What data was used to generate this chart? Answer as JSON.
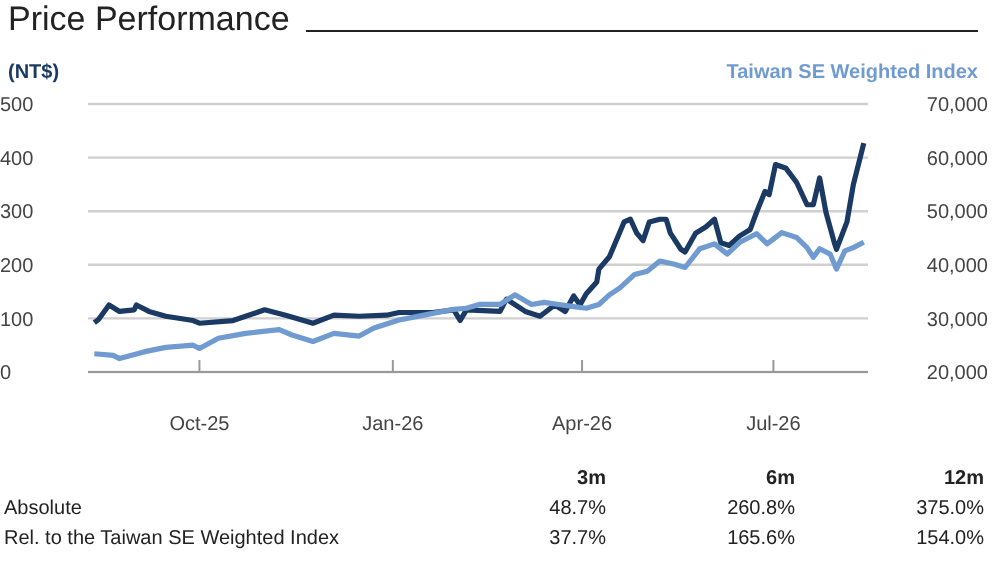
{
  "chart_data": {
    "type": "line",
    "title": "Price Performance",
    "ylabel": "(NT$)",
    "xlim": [
      "2025-08-09",
      "2026-08-15"
    ],
    "xticks": [
      {
        "value": "2025-10-01",
        "label": "Oct-25"
      },
      {
        "value": "2026-01-01",
        "label": "Jan-26"
      },
      {
        "value": "2026-04-01",
        "label": "Apr-26"
      },
      {
        "value": "2026-07-01",
        "label": "Jul-26"
      }
    ],
    "ylim": [
      0,
      500
    ],
    "yticks": [
      0,
      100,
      200,
      300,
      400,
      500
    ],
    "y2lim": [
      20000,
      70000
    ],
    "y2ticks": [
      {
        "value": 20000,
        "label": "20,000"
      },
      {
        "value": 30000,
        "label": "30,000"
      },
      {
        "value": 40000,
        "label": "40,000"
      },
      {
        "value": 50000,
        "label": "50,000"
      },
      {
        "value": 60000,
        "label": "60,000"
      },
      {
        "value": 70000,
        "label": "70,000"
      }
    ],
    "grid": "y",
    "legend": "top right",
    "marker": "none",
    "line_style": "solid",
    "series": [
      {
        "color": "#1b3a63",
        "x": [
          "2025-08-12",
          "2025-08-14",
          "2025-08-19",
          "2025-08-24",
          "2025-08-31",
          "2025-09-01",
          "2025-09-07",
          "2025-09-15",
          "2025-09-28",
          "2025-10-01",
          "2025-10-17",
          "2025-11-01",
          "2025-11-11",
          "2025-11-24",
          "2025-12-04",
          "2025-12-16",
          "2025-12-29",
          "2026-01-04",
          "2026-01-20",
          "2026-01-30",
          "2026-02-02",
          "2026-02-05",
          "2026-02-21",
          "2026-02-24",
          "2026-03-05",
          "2026-03-12",
          "2026-03-19",
          "2026-03-24",
          "2026-03-28",
          "2026-03-31",
          "2026-04-03",
          "2026-04-08",
          "2026-04-09",
          "2026-04-14",
          "2026-04-21",
          "2026-04-24",
          "2026-04-27",
          "2026-04-30",
          "2026-05-03",
          "2026-05-08",
          "2026-05-11",
          "2026-05-13",
          "2026-05-18",
          "2026-05-20",
          "2026-05-25",
          "2026-05-30",
          "2026-06-03",
          "2026-06-06",
          "2026-06-10",
          "2026-06-15",
          "2026-06-20",
          "2026-06-23",
          "2026-06-27",
          "2026-06-29",
          "2026-07-02",
          "2026-07-07",
          "2026-07-12",
          "2026-07-17",
          "2026-07-20",
          "2026-07-23",
          "2026-07-26",
          "2026-07-30",
          "2026-07-31",
          "2026-08-05",
          "2026-08-08",
          "2026-08-13"
        ],
        "values": [
          92,
          98,
          125,
          113,
          116,
          125,
          113,
          104,
          96,
          91,
          96,
          116,
          106,
          91,
          106,
          104,
          106,
          111,
          111,
          116,
          96,
          116,
          113,
          136,
          113,
          104,
          125,
          113,
          142,
          125,
          146,
          168,
          192,
          215,
          280,
          285,
          259,
          245,
          280,
          285,
          285,
          259,
          229,
          224,
          259,
          271,
          285,
          241,
          236,
          254,
          266,
          298,
          337,
          331,
          387,
          380,
          354,
          312,
          312,
          362,
          298,
          241,
          229,
          280,
          349,
          427
        ]
      },
      {
        "name": "Taiwan SE Weighted Index",
        "color": "#6f9bd1",
        "axis": "y2",
        "x": [
          "2025-08-12",
          "2025-08-21",
          "2025-08-24",
          "2025-09-05",
          "2025-09-15",
          "2025-09-28",
          "2025-10-01",
          "2025-10-10",
          "2025-10-23",
          "2025-11-08",
          "2025-11-14",
          "2025-11-24",
          "2025-12-04",
          "2025-12-16",
          "2025-12-23",
          "2026-01-04",
          "2026-01-17",
          "2026-01-30",
          "2026-02-05",
          "2026-02-11",
          "2026-02-21",
          "2026-02-28",
          "2026-03-08",
          "2026-03-14",
          "2026-03-21",
          "2026-03-28",
          "2026-04-03",
          "2026-04-09",
          "2026-04-14",
          "2026-04-19",
          "2026-04-26",
          "2026-05-02",
          "2026-05-08",
          "2026-05-15",
          "2026-05-20",
          "2026-05-27",
          "2026-06-03",
          "2026-06-09",
          "2026-06-15",
          "2026-06-23",
          "2026-06-28",
          "2026-07-05",
          "2026-07-12",
          "2026-07-17",
          "2026-07-20",
          "2026-07-23",
          "2026-07-28",
          "2026-07-31",
          "2026-08-04",
          "2026-08-08",
          "2026-08-13"
        ],
        "values": [
          23400,
          23100,
          22500,
          23800,
          24600,
          25000,
          24400,
          26300,
          27200,
          27900,
          26900,
          25700,
          27200,
          26700,
          28200,
          29700,
          30700,
          31700,
          31900,
          32600,
          32600,
          34400,
          32600,
          33000,
          32600,
          32200,
          31900,
          32600,
          34400,
          35700,
          38200,
          38800,
          40700,
          40100,
          39500,
          43000,
          43900,
          42000,
          44200,
          45800,
          43900,
          46000,
          45100,
          43200,
          41400,
          43000,
          42000,
          39200,
          42600,
          43200,
          44200
        ]
      }
    ],
    "annotations": [
      "3m",
      "6m",
      "12m",
      "Absolute",
      "48.7%",
      "260.8%",
      "375.0%",
      "Rel. to the Taiwan SE Weighted Index",
      "37.7%",
      "165.6%",
      "154.0%"
    ]
  }
}
